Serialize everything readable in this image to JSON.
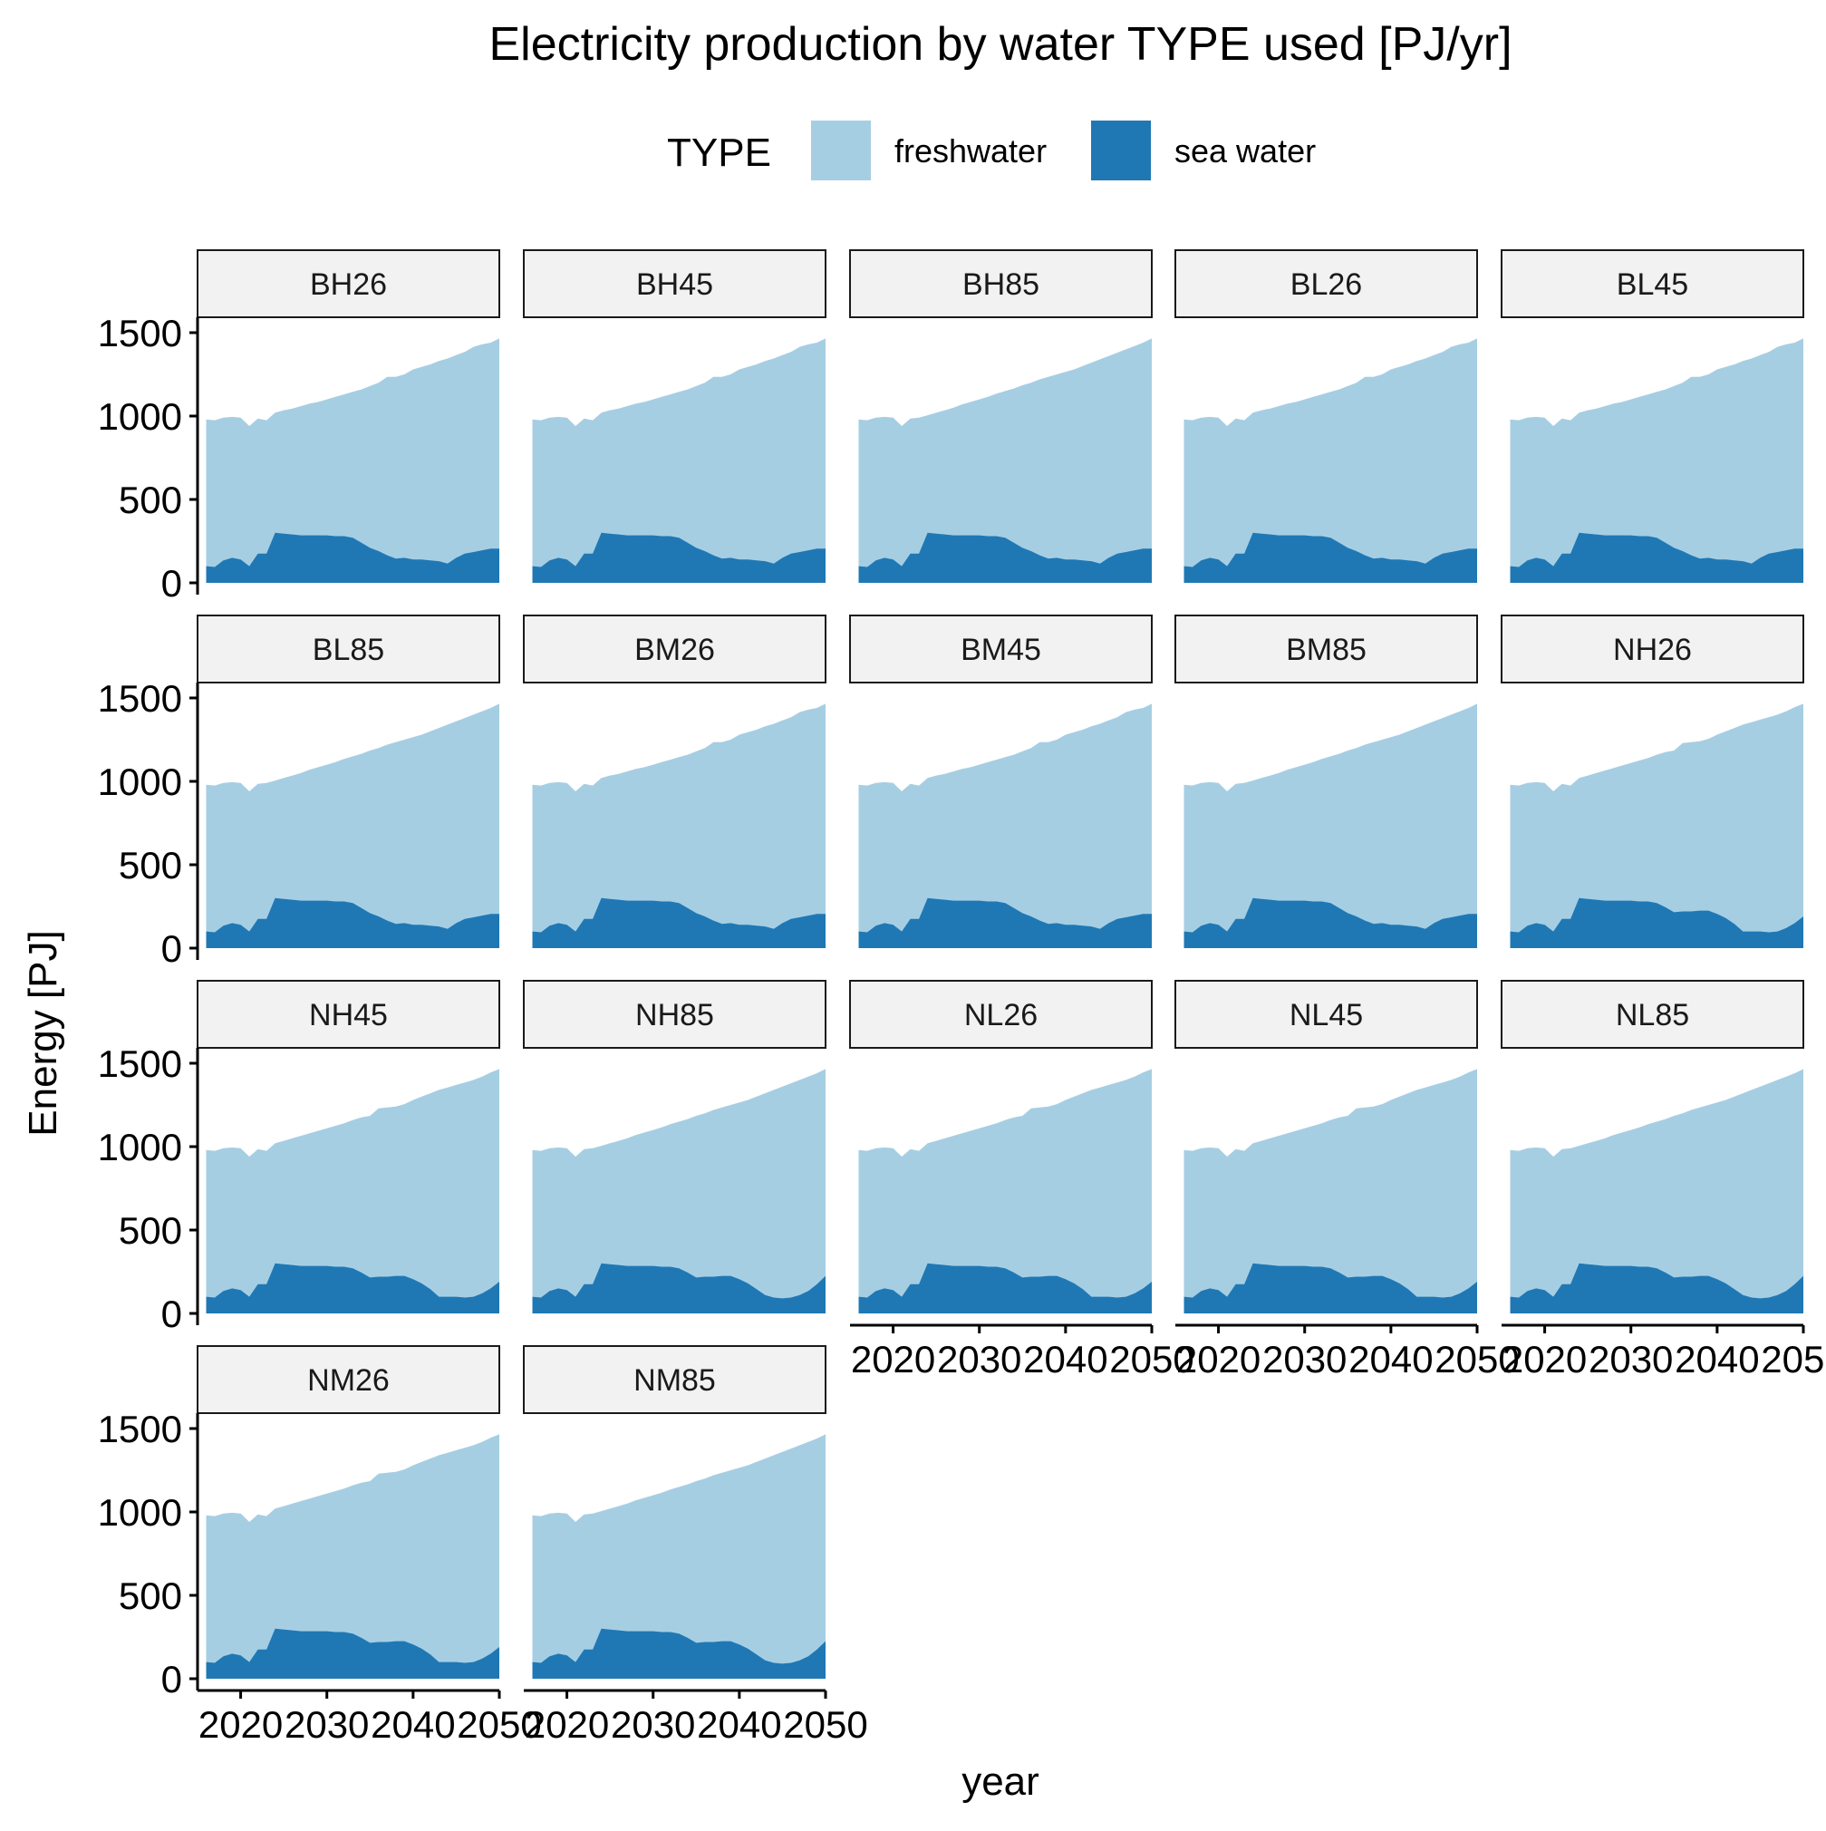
{
  "chart_data": {
    "type": "area",
    "title": "Electricity production by water TYPE used [PJ/yr]",
    "xlabel": "year",
    "ylabel": "Energy [PJ]",
    "stacked": true,
    "legend": {
      "title": "TYPE",
      "position": "top",
      "entries": [
        {
          "name": "freshwater",
          "color": "#a6cee3"
        },
        {
          "name": "sea water",
          "color": "#1f78b4"
        }
      ]
    },
    "xlim": [
      2015,
      2050
    ],
    "ylim": [
      0,
      1500
    ],
    "x_ticks": [
      2020,
      2030,
      2040,
      2050
    ],
    "y_ticks": [
      0,
      500,
      1000,
      1500
    ],
    "grid": false,
    "x": [
      2016,
      2017,
      2018,
      2019,
      2020,
      2021,
      2022,
      2023,
      2024,
      2025,
      2026,
      2027,
      2028,
      2029,
      2030,
      2031,
      2032,
      2033,
      2034,
      2035,
      2036,
      2037,
      2038,
      2039,
      2040,
      2041,
      2042,
      2043,
      2044,
      2045,
      2046,
      2047,
      2048,
      2049,
      2050
    ],
    "total_profiles": {
      "A": [
        980,
        975,
        990,
        995,
        990,
        940,
        985,
        975,
        1020,
        1035,
        1045,
        1060,
        1075,
        1085,
        1100,
        1115,
        1130,
        1145,
        1160,
        1180,
        1200,
        1235,
        1235,
        1250,
        1280,
        1295,
        1310,
        1330,
        1345,
        1365,
        1385,
        1415,
        1430,
        1440,
        1465
      ],
      "B": [
        980,
        975,
        990,
        995,
        990,
        940,
        985,
        990,
        1005,
        1020,
        1035,
        1050,
        1070,
        1085,
        1100,
        1115,
        1135,
        1150,
        1165,
        1185,
        1200,
        1220,
        1235,
        1250,
        1265,
        1280,
        1300,
        1320,
        1340,
        1360,
        1380,
        1400,
        1420,
        1440,
        1465
      ],
      "C": [
        980,
        975,
        990,
        995,
        990,
        940,
        985,
        975,
        1020,
        1035,
        1050,
        1065,
        1080,
        1095,
        1110,
        1125,
        1140,
        1160,
        1175,
        1185,
        1230,
        1235,
        1240,
        1255,
        1280,
        1300,
        1320,
        1340,
        1355,
        1370,
        1385,
        1400,
        1420,
        1445,
        1465
      ]
    },
    "sea_water_profiles": {
      "P1": [
        100,
        95,
        135,
        150,
        140,
        100,
        175,
        175,
        300,
        295,
        290,
        285,
        285,
        285,
        285,
        280,
        280,
        270,
        240,
        210,
        190,
        165,
        145,
        150,
        140,
        140,
        135,
        130,
        115,
        150,
        175,
        185,
        195,
        205,
        205
      ],
      "P2": [
        100,
        95,
        135,
        150,
        140,
        100,
        175,
        175,
        300,
        295,
        290,
        285,
        285,
        285,
        285,
        280,
        280,
        270,
        245,
        215,
        220,
        220,
        225,
        225,
        205,
        180,
        145,
        100,
        100,
        100,
        95,
        100,
        120,
        150,
        190
      ],
      "P3": [
        100,
        95,
        135,
        150,
        140,
        100,
        175,
        175,
        300,
        295,
        290,
        285,
        285,
        285,
        285,
        280,
        280,
        270,
        245,
        215,
        220,
        220,
        225,
        225,
        205,
        180,
        145,
        110,
        95,
        90,
        95,
        110,
        135,
        175,
        225
      ]
    },
    "panels": [
      {
        "label": "BH26",
        "total": "A",
        "sea_water": "P1"
      },
      {
        "label": "BH45",
        "total": "A",
        "sea_water": "P1"
      },
      {
        "label": "BH85",
        "total": "B",
        "sea_water": "P1"
      },
      {
        "label": "BL26",
        "total": "A",
        "sea_water": "P1"
      },
      {
        "label": "BL45",
        "total": "A",
        "sea_water": "P1"
      },
      {
        "label": "BL85",
        "total": "B",
        "sea_water": "P1"
      },
      {
        "label": "BM26",
        "total": "A",
        "sea_water": "P1"
      },
      {
        "label": "BM45",
        "total": "A",
        "sea_water": "P1"
      },
      {
        "label": "BM85",
        "total": "B",
        "sea_water": "P1"
      },
      {
        "label": "NH26",
        "total": "C",
        "sea_water": "P2"
      },
      {
        "label": "NH45",
        "total": "C",
        "sea_water": "P2"
      },
      {
        "label": "NH85",
        "total": "B",
        "sea_water": "P3"
      },
      {
        "label": "NL26",
        "total": "C",
        "sea_water": "P2"
      },
      {
        "label": "NL45",
        "total": "C",
        "sea_water": "P2"
      },
      {
        "label": "NL85",
        "total": "B",
        "sea_water": "P3"
      },
      {
        "label": "NM26",
        "total": "C",
        "sea_water": "P2"
      },
      {
        "label": "NM85",
        "total": "B",
        "sea_water": "P3"
      }
    ]
  }
}
